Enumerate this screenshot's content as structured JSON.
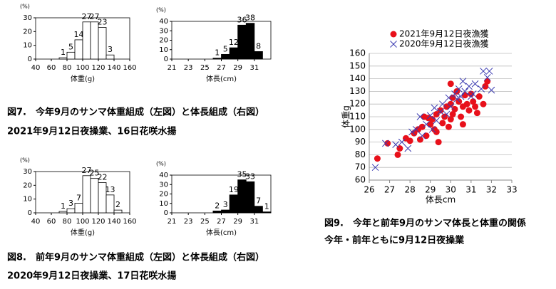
{
  "chart_data": [
    {
      "type": "histogram",
      "y_unit": "(%)",
      "xlabel": "体重(g)",
      "color": "#ffffff",
      "bins": [
        70,
        80,
        90,
        100,
        110,
        120,
        130,
        140
      ],
      "values": [
        1,
        5,
        14,
        27,
        27,
        23,
        3
      ],
      "xlim": [
        40,
        160
      ],
      "xticks": [
        40,
        60,
        80,
        100,
        120,
        140,
        160
      ],
      "ylim": [
        0,
        30
      ],
      "yticks": [
        0,
        10,
        20,
        30
      ]
    },
    {
      "type": "histogram",
      "y_unit": "(%)",
      "xlabel": "体長(cm)",
      "color": "#000000",
      "bins": [
        26,
        27,
        28,
        29,
        30,
        31,
        32
      ],
      "values": [
        1,
        5,
        12,
        36,
        38,
        8
      ],
      "xlim": [
        21,
        33
      ],
      "xticks": [
        21,
        23,
        25,
        27,
        29,
        31
      ],
      "ylim": [
        0,
        40
      ],
      "yticks": [
        0,
        10,
        20,
        30,
        40
      ]
    },
    {
      "type": "histogram",
      "y_unit": "(%)",
      "xlabel": "体重(g)",
      "color": "#ffffff",
      "bins": [
        70,
        80,
        90,
        100,
        110,
        120,
        130,
        140,
        150
      ],
      "values": [
        1,
        3,
        7,
        27,
        25,
        22,
        13,
        2
      ],
      "xlim": [
        40,
        160
      ],
      "xticks": [
        40,
        60,
        80,
        100,
        120,
        140,
        160
      ],
      "ylim": [
        0,
        30
      ],
      "yticks": [
        0,
        10,
        20,
        30
      ]
    },
    {
      "type": "histogram",
      "y_unit": "(%)",
      "xlabel": "体長(cm)",
      "color": "#000000",
      "bins": [
        26,
        27,
        28,
        29,
        30,
        31,
        32,
        33
      ],
      "values": [
        2,
        3,
        19,
        35,
        33,
        7,
        1
      ],
      "xlim": [
        21,
        33
      ],
      "xticks": [
        21,
        23,
        25,
        27,
        29,
        31
      ],
      "ylim": [
        0,
        40
      ],
      "yticks": [
        0,
        10,
        20,
        30,
        40
      ]
    },
    {
      "type": "scatter",
      "xlabel": "体長cm",
      "ylabel": "体重g",
      "xlim": [
        26,
        33
      ],
      "xticks": [
        26,
        27,
        28,
        29,
        30,
        31,
        32,
        33
      ],
      "ylim": [
        60,
        160
      ],
      "yticks": [
        60,
        70,
        80,
        90,
        100,
        110,
        120,
        130,
        140,
        150,
        160
      ],
      "grid": true,
      "series": [
        {
          "name": "2021年9月12日夜漁獲",
          "color": "#e8101a",
          "marker": "circle",
          "x": [
            26.4,
            26.9,
            27.4,
            27.5,
            27.8,
            28.0,
            28.2,
            28.4,
            28.5,
            28.6,
            28.7,
            28.8,
            29.0,
            29.1,
            29.2,
            29.3,
            29.3,
            29.5,
            29.6,
            29.7,
            29.8,
            29.9,
            30.0,
            30.0,
            30.1,
            30.1,
            30.2,
            30.3,
            30.4,
            30.5,
            30.6,
            30.7,
            30.8,
            30.9,
            31.0,
            31.1,
            31.2,
            31.4,
            31.6,
            31.7,
            31.8,
            30.0,
            29.4,
            28.9,
            30.6,
            31.3
          ],
          "values": [
            77,
            89,
            80,
            85,
            93,
            91,
            97,
            100,
            92,
            102,
            110,
            95,
            104,
            108,
            100,
            112,
            98,
            115,
            105,
            110,
            118,
            102,
            120,
            108,
            125,
            112,
            116,
            130,
            122,
            110,
            118,
            127,
            120,
            115,
            128,
            122,
            118,
            126,
            120,
            134,
            138,
            136,
            90,
            109,
            104,
            113
          ]
        },
        {
          "name": "2020年9月12日夜漁獲",
          "color": "#3a3ab0",
          "marker": "x",
          "x": [
            26.3,
            26.8,
            27.3,
            27.6,
            27.9,
            28.1,
            28.3,
            28.6,
            28.8,
            29.0,
            29.1,
            29.3,
            29.5,
            29.6,
            29.8,
            29.9,
            30.0,
            30.2,
            30.3,
            30.4,
            30.5,
            30.7,
            30.9,
            31.0,
            31.2,
            31.5,
            31.6,
            31.8,
            31.9,
            32.0,
            31.1,
            29.2,
            28.5,
            30.6
          ],
          "values": [
            70,
            89,
            88,
            90,
            85,
            98,
            100,
            95,
            104,
            111,
            100,
            107,
            114,
            120,
            112,
            125,
            118,
            128,
            124,
            132,
            126,
            130,
            134,
            126,
            136,
            132,
            146,
            141,
            146,
            131,
            128,
            117,
            110,
            138
          ]
        }
      ]
    }
  ],
  "captions": {
    "fig7": [
      "図7.　今年9月のサンマ体重組成（左図）と体長組成（右図）",
      "2021年9月12日夜操業、16日花咲水揚"
    ],
    "fig8": [
      "図8.　前年9月のサンマ体重組成（左図）と体長組成（右図）",
      "2020年9月12日夜操業、17日花咲水揚"
    ],
    "fig9": [
      "図9.　今年と前年9月のサンマ体長と体重の関係",
      "今年・前年ともに9月12日夜操業"
    ]
  }
}
